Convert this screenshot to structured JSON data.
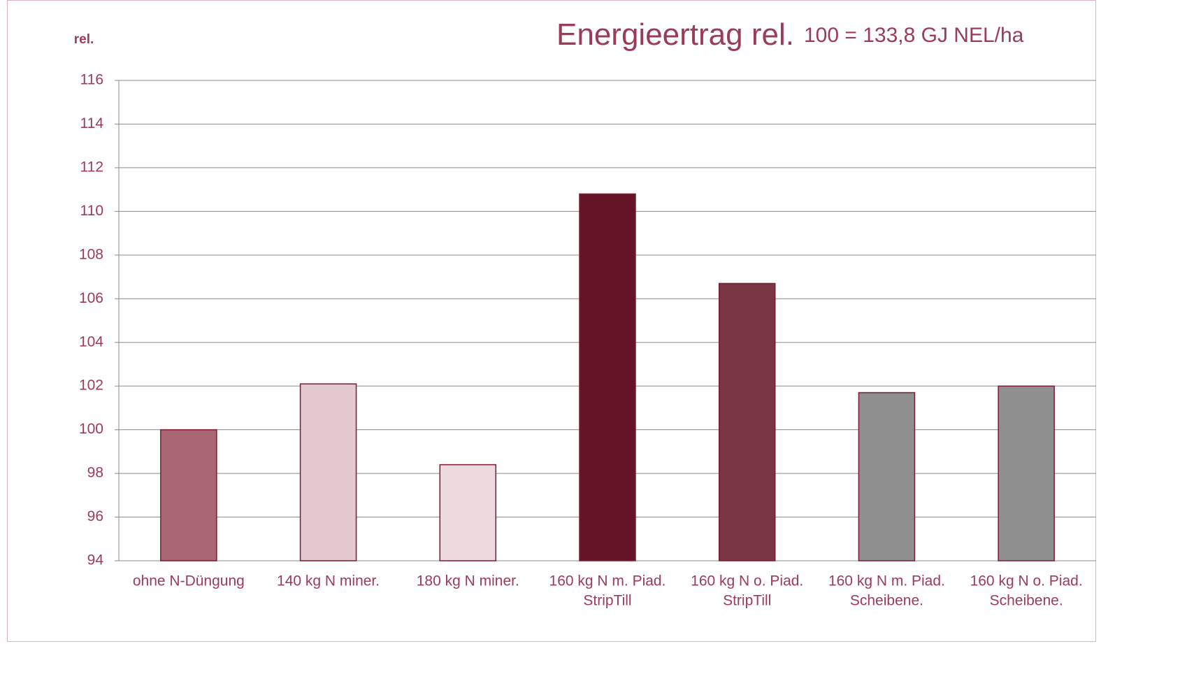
{
  "chart_data": {
    "type": "bar",
    "title": "Energieertrag rel.",
    "subtitle": "100 = 133,8 GJ NEL/ha",
    "y_label": "rel.",
    "categories": [
      [
        "ohne N-Düngung"
      ],
      [
        "140 kg N miner."
      ],
      [
        "180 kg N miner."
      ],
      [
        "160 kg N m. Piad.",
        "StripTill"
      ],
      [
        "160 kg N o. Piad.",
        "StripTill"
      ],
      [
        "160 kg N m. Piad.",
        "Scheibene."
      ],
      [
        "160 kg N o. Piad.",
        "Scheibene."
      ]
    ],
    "values": [
      100,
      102.1,
      98.4,
      110.8,
      106.7,
      101.7,
      102.0
    ],
    "colors": [
      "#ab6673",
      "#e3c8cd",
      "#ecdade",
      "#641426",
      "#7a3644",
      "#8f8f8f",
      "#8f8f8f"
    ],
    "ylim": [
      94,
      116
    ],
    "yticks": [
      94,
      96,
      98,
      100,
      102,
      104,
      106,
      108,
      110,
      112,
      114,
      116
    ],
    "grid": true
  }
}
